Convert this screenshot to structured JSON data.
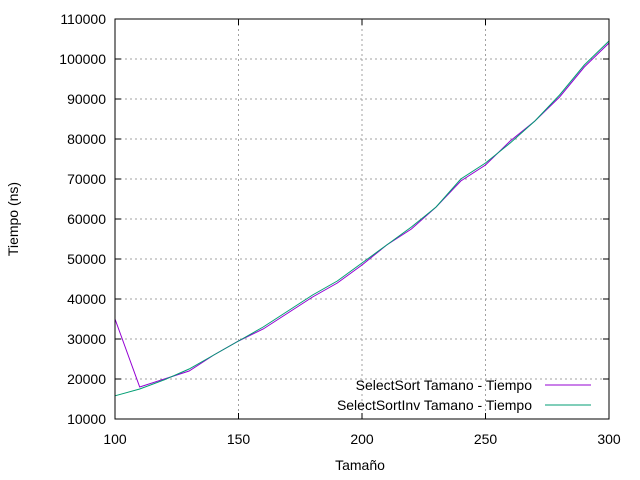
{
  "chart_data": {
    "type": "line",
    "title": "",
    "xlabel": "Tamaño",
    "ylabel": "Tiempo (ns)",
    "xlim": [
      100,
      300
    ],
    "ylim": [
      10000,
      110000
    ],
    "x_ticks": [
      100,
      150,
      200,
      250,
      300
    ],
    "y_ticks": [
      10000,
      20000,
      30000,
      40000,
      50000,
      60000,
      70000,
      80000,
      90000,
      100000,
      110000
    ],
    "grid": true,
    "legend_position": "bottom-right",
    "series": [
      {
        "name": "SelectSort Tamano - Tiempo",
        "color": "#9400D3",
        "x": [
          100,
          110,
          120,
          130,
          140,
          150,
          160,
          170,
          180,
          190,
          200,
          210,
          220,
          230,
          240,
          250,
          260,
          270,
          280,
          290,
          300
        ],
        "y": [
          35000,
          18000,
          20000,
          22000,
          26000,
          29500,
          32500,
          36500,
          40500,
          44000,
          48500,
          53500,
          57500,
          63000,
          69500,
          73500,
          79500,
          84500,
          90500,
          98000,
          104000
        ]
      },
      {
        "name": "SelectSortInv Tamano - Tiempo",
        "color": "#009E73",
        "x": [
          100,
          110,
          120,
          130,
          140,
          150,
          160,
          170,
          180,
          190,
          200,
          210,
          220,
          230,
          240,
          250,
          260,
          270,
          280,
          290,
          300
        ],
        "y": [
          15800,
          17500,
          19800,
          22500,
          26000,
          29500,
          33000,
          37000,
          41000,
          44500,
          49000,
          53500,
          58000,
          63000,
          70000,
          74000,
          79000,
          84500,
          91000,
          98500,
          104500
        ]
      }
    ]
  }
}
